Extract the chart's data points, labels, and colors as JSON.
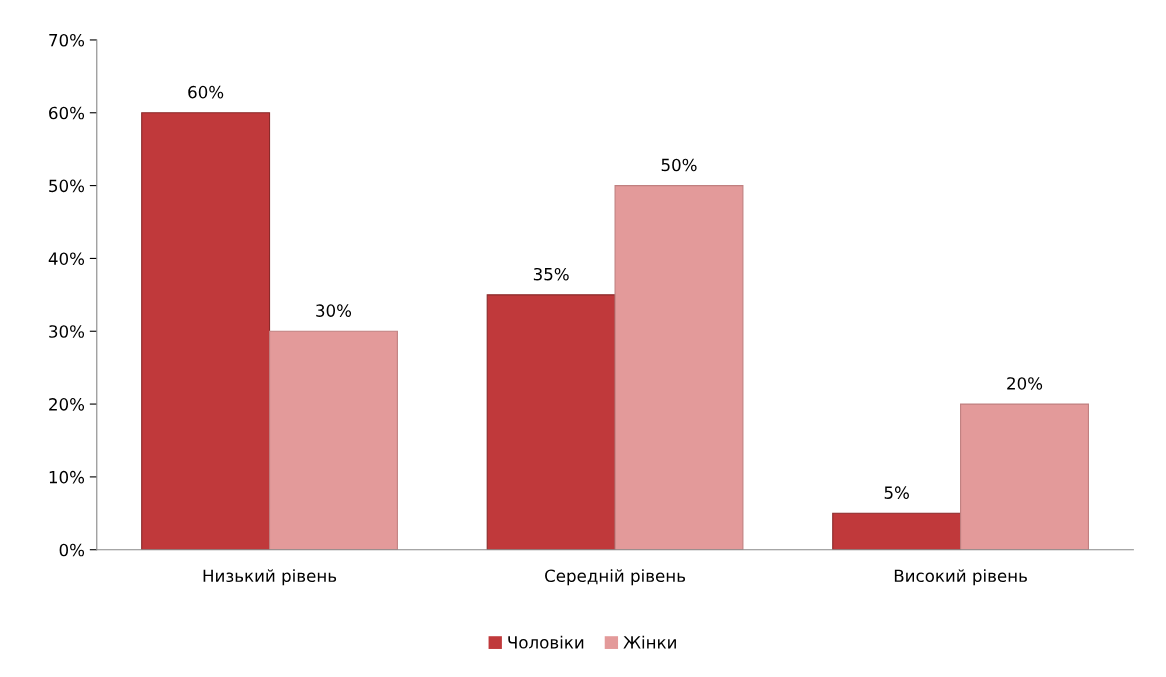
{
  "chart_data": {
    "type": "bar",
    "categories": [
      "Низький рівень",
      "Середній рівень",
      "Високий рівень"
    ],
    "series": [
      {
        "name": "Чоловіки",
        "color": "#c0393b",
        "values": [
          60,
          35,
          5
        ],
        "value_labels": [
          "60%",
          "35%",
          "5%"
        ]
      },
      {
        "name": "Жінки",
        "color": "#e39a9a",
        "values": [
          30,
          50,
          20
        ],
        "value_labels": [
          "30%",
          "50%",
          "20%"
        ]
      }
    ],
    "ylim": [
      0,
      70
    ],
    "yticks": [
      {
        "value": 0,
        "label": "0%"
      },
      {
        "value": 10,
        "label": "10%"
      },
      {
        "value": 20,
        "label": "20%"
      },
      {
        "value": 30,
        "label": "30%"
      },
      {
        "value": 40,
        "label": "40%"
      },
      {
        "value": 50,
        "label": "50%"
      },
      {
        "value": 60,
        "label": "60%"
      },
      {
        "value": 70,
        "label": "70%"
      }
    ],
    "grid": false,
    "legend": "bottom"
  }
}
